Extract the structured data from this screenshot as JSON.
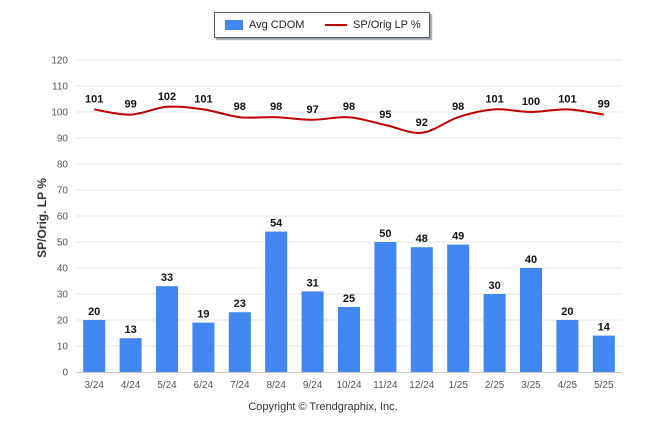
{
  "chart_data": {
    "type": "bar",
    "categories": [
      "3/24",
      "4/24",
      "5/24",
      "6/24",
      "7/24",
      "8/24",
      "9/24",
      "10/24",
      "11/24",
      "12/24",
      "1/25",
      "2/25",
      "3/25",
      "4/25",
      "5/25"
    ],
    "series": [
      {
        "name": "Avg CDOM",
        "type": "bar",
        "color": "#4286f0",
        "values": [
          20,
          13,
          33,
          19,
          23,
          54,
          31,
          25,
          50,
          48,
          49,
          30,
          40,
          20,
          14
        ]
      },
      {
        "name": "SP/Orig LP %",
        "type": "line",
        "color": "#c00000",
        "values": [
          101,
          99,
          102,
          101,
          98,
          98,
          97,
          98,
          95,
          92,
          98,
          101,
          100,
          101,
          99
        ]
      }
    ],
    "title": "",
    "xlabel": "",
    "ylabel": "SP/Orig. LP %",
    "ylim": [
      0,
      120
    ],
    "yticks": [
      0,
      10,
      20,
      30,
      40,
      50,
      60,
      70,
      80,
      90,
      100,
      110,
      120
    ],
    "grid": true,
    "legend_position": "top-center"
  },
  "legend": {
    "bar_label": "Avg CDOM",
    "line_label": "SP/Orig LP %"
  },
  "footer": {
    "copyright": "Copyright © Trendgraphix, Inc."
  },
  "colors": {
    "bar": "#4286f0",
    "line": "#c00000",
    "grid": "#e6e6e6"
  }
}
